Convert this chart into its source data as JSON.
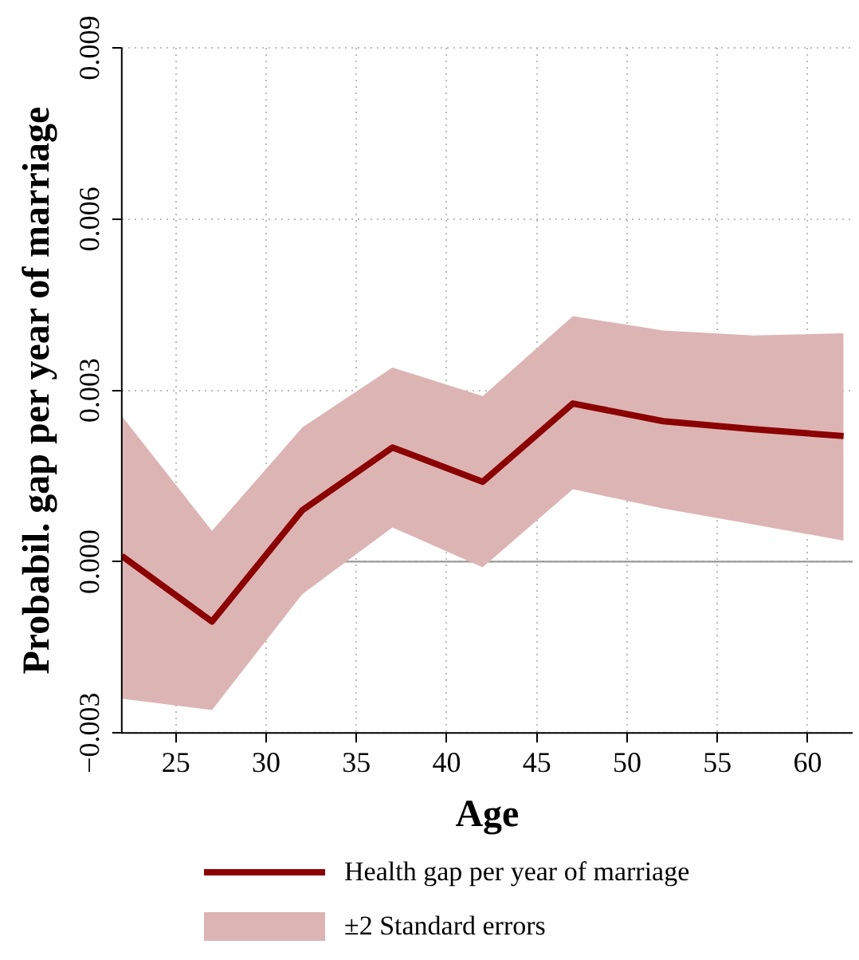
{
  "chart_data": {
    "type": "line",
    "xlabel": "Age",
    "ylabel": "Probabil. gap per year of marriage",
    "x": [
      22,
      27,
      32,
      37,
      42,
      47,
      52,
      57,
      62
    ],
    "xlim": [
      22,
      62.5
    ],
    "xticks": [
      25,
      30,
      35,
      40,
      45,
      50,
      55,
      60
    ],
    "ylim": [
      -0.003,
      0.009
    ],
    "yticks": [
      {
        "value": -0.003,
        "label": "−0.003"
      },
      {
        "value": 0,
        "label": "0.000"
      },
      {
        "value": 0.003,
        "label": "0.003"
      },
      {
        "value": 0.006,
        "label": "0.006"
      },
      {
        "value": 0.009,
        "label": "0.009"
      }
    ],
    "series": [
      {
        "name": "Health gap per year of marriage",
        "color": "#8b0000",
        "values": [
          0.0001,
          -0.00105,
          0.0009,
          0.002,
          0.0014,
          0.00277,
          0.00246,
          0.00232,
          0.0022
        ],
        "upper": [
          0.00255,
          0.00054,
          0.00235,
          0.0034,
          0.0029,
          0.0043,
          0.00405,
          0.00396,
          0.004
        ],
        "lower": [
          -0.0024,
          -0.0026,
          -0.00057,
          0.0006,
          -0.0001,
          0.00127,
          0.00093,
          0.00065,
          0.00037
        ]
      }
    ],
    "annotations": [
      "±2 Standard errors"
    ],
    "ref_lines": [
      {
        "axis": "y",
        "value": 0,
        "color": "#999999"
      }
    ],
    "grid": true,
    "legend": "bottom",
    "line_style": "solid",
    "marker": "none"
  }
}
